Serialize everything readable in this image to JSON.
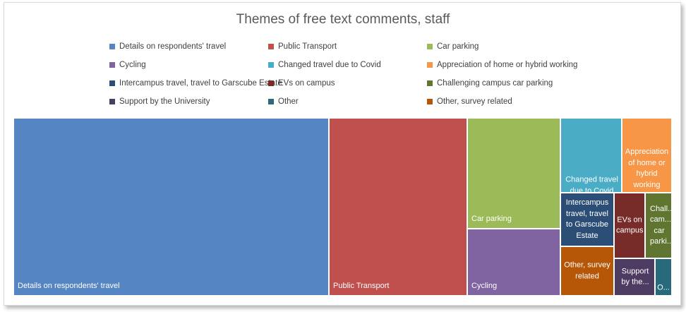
{
  "chart_data": {
    "type": "treemap",
    "title": "Themes of free text comments, staff",
    "legend": {
      "placement": "top",
      "columns": 3
    },
    "categories": [
      {
        "name": "Details on respondents' travel",
        "label": "Details on respondents' travel",
        "value": 41.6,
        "color": "#5585c2"
      },
      {
        "name": "Public Transport",
        "label": "Public Transport",
        "value": 18.3,
        "color": "#c0504e"
      },
      {
        "name": "Car parking",
        "label": "Car parking",
        "value": 7.0,
        "color": "#9bbb59"
      },
      {
        "name": "Cycling",
        "label": "Cycling",
        "value": 4.8,
        "color": "#8064a2"
      },
      {
        "name": "Changed travel due to Covid",
        "label": "Changed travel due to Covid",
        "value": 3.7,
        "color": "#4bacc6"
      },
      {
        "name": "Appreciation of home or hybrid working",
        "label": "Appreciation of home or hybrid working",
        "value": 2.8,
        "color": "#f79646"
      },
      {
        "name": "Intercampus travel, travel to Garscube Estate",
        "label": "Intercampus travel, travel to Garscube Estate",
        "value": 2.8,
        "color": "#2c4d75"
      },
      {
        "name": "EVs on campus",
        "label": "EVs on campus",
        "value": 1.8,
        "color": "#772c2a"
      },
      {
        "name": "Challenging campus car parking",
        "label": "Chall... cam... car parki...",
        "value": 1.7,
        "color": "#5f7530"
      },
      {
        "name": "Support by the University",
        "label": "Support by the...",
        "value": 1.2,
        "color": "#4d3b62"
      },
      {
        "name": "Other",
        "label": "O...",
        "value": 0.8,
        "color": "#276a7c"
      },
      {
        "name": "Other, survey related",
        "label": "Other, survey related",
        "value": 2.2,
        "color": "#b65708"
      }
    ]
  }
}
